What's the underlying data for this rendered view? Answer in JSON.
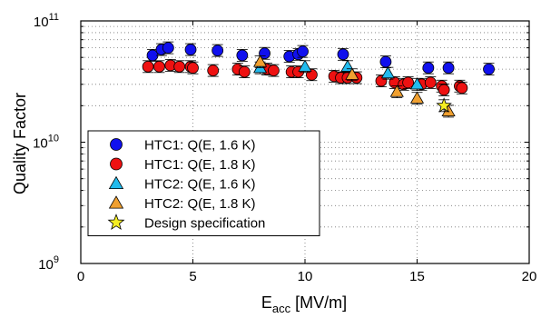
{
  "chart_data": {
    "type": "scatter",
    "title": "",
    "xlabel_main": "E",
    "xlabel_sub": "acc",
    "xlabel_unit": " [MV/m]",
    "ylabel": "Quality Factor",
    "xlim": [
      0,
      20
    ],
    "ylim": [
      1000000000,
      100000000000
    ],
    "yscale": "log",
    "grid": true,
    "legend_position": "bottom-left",
    "x_ticks": [
      "0",
      "5",
      "10",
      "15",
      "20"
    ],
    "y_ticks": [
      {
        "value": 1000000000,
        "base": "10",
        "exp": "9"
      },
      {
        "value": 10000000000,
        "base": "10",
        "exp": "10"
      },
      {
        "value": 100000000000,
        "base": "10",
        "exp": "11"
      }
    ],
    "series": [
      {
        "name": "HTC1: Q(E, 1.6 K)",
        "marker": "circle",
        "color": "#1010ee",
        "points": [
          {
            "x": 3.2,
            "y": 52000000000
          },
          {
            "x": 3.6,
            "y": 58000000000
          },
          {
            "x": 3.9,
            "y": 60000000000
          },
          {
            "x": 4.9,
            "y": 58000000000
          },
          {
            "x": 6.1,
            "y": 57000000000
          },
          {
            "x": 7.2,
            "y": 52000000000
          },
          {
            "x": 8.2,
            "y": 54000000000
          },
          {
            "x": 9.3,
            "y": 51000000000
          },
          {
            "x": 9.7,
            "y": 53000000000
          },
          {
            "x": 9.9,
            "y": 56000000000
          },
          {
            "x": 11.7,
            "y": 53000000000
          },
          {
            "x": 13.6,
            "y": 46000000000
          },
          {
            "x": 15.5,
            "y": 41000000000
          },
          {
            "x": 16.4,
            "y": 41000000000
          },
          {
            "x": 18.2,
            "y": 40000000000
          }
        ]
      },
      {
        "name": "HTC1: Q(E, 1.8 K)",
        "marker": "circle",
        "color": "#ee1111",
        "points": [
          {
            "x": 3.0,
            "y": 42000000000
          },
          {
            "x": 3.5,
            "y": 42000000000
          },
          {
            "x": 4.0,
            "y": 43000000000
          },
          {
            "x": 4.4,
            "y": 42000000000
          },
          {
            "x": 4.9,
            "y": 42000000000
          },
          {
            "x": 5.0,
            "y": 41000000000
          },
          {
            "x": 5.9,
            "y": 39000000000
          },
          {
            "x": 7.0,
            "y": 40000000000
          },
          {
            "x": 7.3,
            "y": 38000000000
          },
          {
            "x": 8.3,
            "y": 40000000000
          },
          {
            "x": 8.6,
            "y": 39000000000
          },
          {
            "x": 9.4,
            "y": 38000000000
          },
          {
            "x": 9.7,
            "y": 38000000000
          },
          {
            "x": 10.3,
            "y": 36000000000
          },
          {
            "x": 11.3,
            "y": 35000000000
          },
          {
            "x": 11.6,
            "y": 34000000000
          },
          {
            "x": 11.9,
            "y": 34000000000
          },
          {
            "x": 12.3,
            "y": 34000000000
          },
          {
            "x": 13.4,
            "y": 32000000000
          },
          {
            "x": 14.0,
            "y": 31000000000
          },
          {
            "x": 14.4,
            "y": 30000000000
          },
          {
            "x": 14.6,
            "y": 31000000000
          },
          {
            "x": 15.2,
            "y": 30000000000
          },
          {
            "x": 15.6,
            "y": 31000000000
          },
          {
            "x": 16.1,
            "y": 29000000000
          },
          {
            "x": 16.2,
            "y": 27000000000
          },
          {
            "x": 16.9,
            "y": 29000000000
          },
          {
            "x": 17.0,
            "y": 28000000000
          }
        ]
      },
      {
        "name": "HTC2: Q(E, 1.6 K)",
        "marker": "triangle",
        "color": "#22bbee",
        "points": [
          {
            "x": 8.0,
            "y": 41000000000
          },
          {
            "x": 10.0,
            "y": 42000000000
          },
          {
            "x": 11.9,
            "y": 42000000000
          },
          {
            "x": 13.7,
            "y": 37000000000
          },
          {
            "x": 15.0,
            "y": 30000000000
          }
        ]
      },
      {
        "name": "HTC2: Q(E, 1.8 K)",
        "marker": "triangle",
        "color": "#f0a030",
        "points": [
          {
            "x": 8.0,
            "y": 46000000000
          },
          {
            "x": 12.1,
            "y": 36000000000
          },
          {
            "x": 14.1,
            "y": 26000000000
          },
          {
            "x": 15.0,
            "y": 23000000000
          },
          {
            "x": 16.4,
            "y": 18000000000
          }
        ]
      },
      {
        "name": "Design specification",
        "marker": "star",
        "color": "#f5ee22",
        "points": [
          {
            "x": 16.2,
            "y": 20000000000
          }
        ]
      }
    ]
  }
}
